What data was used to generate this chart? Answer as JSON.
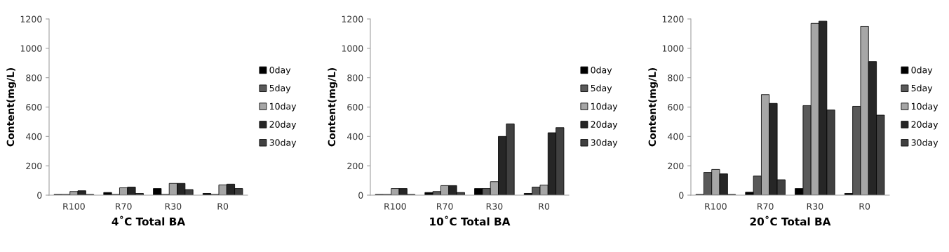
{
  "chart_data": [
    {
      "type": "bar",
      "xlabel": "4˚C Total BA",
      "ylabel": "Content(mg/L)",
      "categories": [
        "R100",
        "R70",
        "R30",
        "R0"
      ],
      "ylim": [
        0,
        1200
      ],
      "yticks": [
        0,
        200,
        400,
        600,
        800,
        1000,
        1200
      ],
      "legend": "right",
      "grid": false,
      "series": [
        {
          "name": "0day",
          "color": "#000000",
          "values": [
            5,
            18,
            45,
            12
          ]
        },
        {
          "name": "5day",
          "color": "#595959",
          "values": [
            5,
            5,
            5,
            5
          ]
        },
        {
          "name": "10day",
          "color": "#a6a6a6",
          "values": [
            25,
            50,
            80,
            70
          ]
        },
        {
          "name": "20day",
          "color": "#262626",
          "values": [
            30,
            55,
            80,
            75
          ]
        },
        {
          "name": "30day",
          "color": "#404040",
          "values": [
            5,
            12,
            38,
            45
          ]
        }
      ]
    },
    {
      "type": "bar",
      "xlabel": "10˚C Total BA",
      "ylabel": "Content(mg/L)",
      "categories": [
        "R100",
        "R70",
        "R30",
        "R0"
      ],
      "ylim": [
        0,
        1200
      ],
      "yticks": [
        0,
        200,
        400,
        600,
        800,
        1000,
        1200
      ],
      "legend": "right",
      "grid": false,
      "series": [
        {
          "name": "0day",
          "color": "#000000",
          "values": [
            5,
            18,
            45,
            12
          ]
        },
        {
          "name": "5day",
          "color": "#595959",
          "values": [
            5,
            25,
            45,
            55
          ]
        },
        {
          "name": "10day",
          "color": "#a6a6a6",
          "values": [
            45,
            65,
            92,
            68
          ]
        },
        {
          "name": "20day",
          "color": "#262626",
          "values": [
            45,
            65,
            400,
            425
          ]
        },
        {
          "name": "30day",
          "color": "#404040",
          "values": [
            5,
            18,
            485,
            460
          ]
        }
      ]
    },
    {
      "type": "bar",
      "xlabel": "20˚C Total BA",
      "ylabel": "Content(mg/L)",
      "categories": [
        "R100",
        "R70",
        "R30",
        "R0"
      ],
      "ylim": [
        0,
        1200
      ],
      "yticks": [
        0,
        200,
        400,
        600,
        800,
        1000,
        1200
      ],
      "legend": "right",
      "grid": false,
      "series": [
        {
          "name": "0day",
          "color": "#000000",
          "values": [
            5,
            20,
            45,
            12
          ]
        },
        {
          "name": "5day",
          "color": "#595959",
          "values": [
            155,
            130,
            610,
            605
          ]
        },
        {
          "name": "10day",
          "color": "#a6a6a6",
          "values": [
            175,
            685,
            1170,
            1150
          ]
        },
        {
          "name": "20day",
          "color": "#262626",
          "values": [
            145,
            625,
            1185,
            910
          ]
        },
        {
          "name": "30day",
          "color": "#404040",
          "values": [
            5,
            105,
            580,
            545
          ]
        }
      ]
    }
  ]
}
